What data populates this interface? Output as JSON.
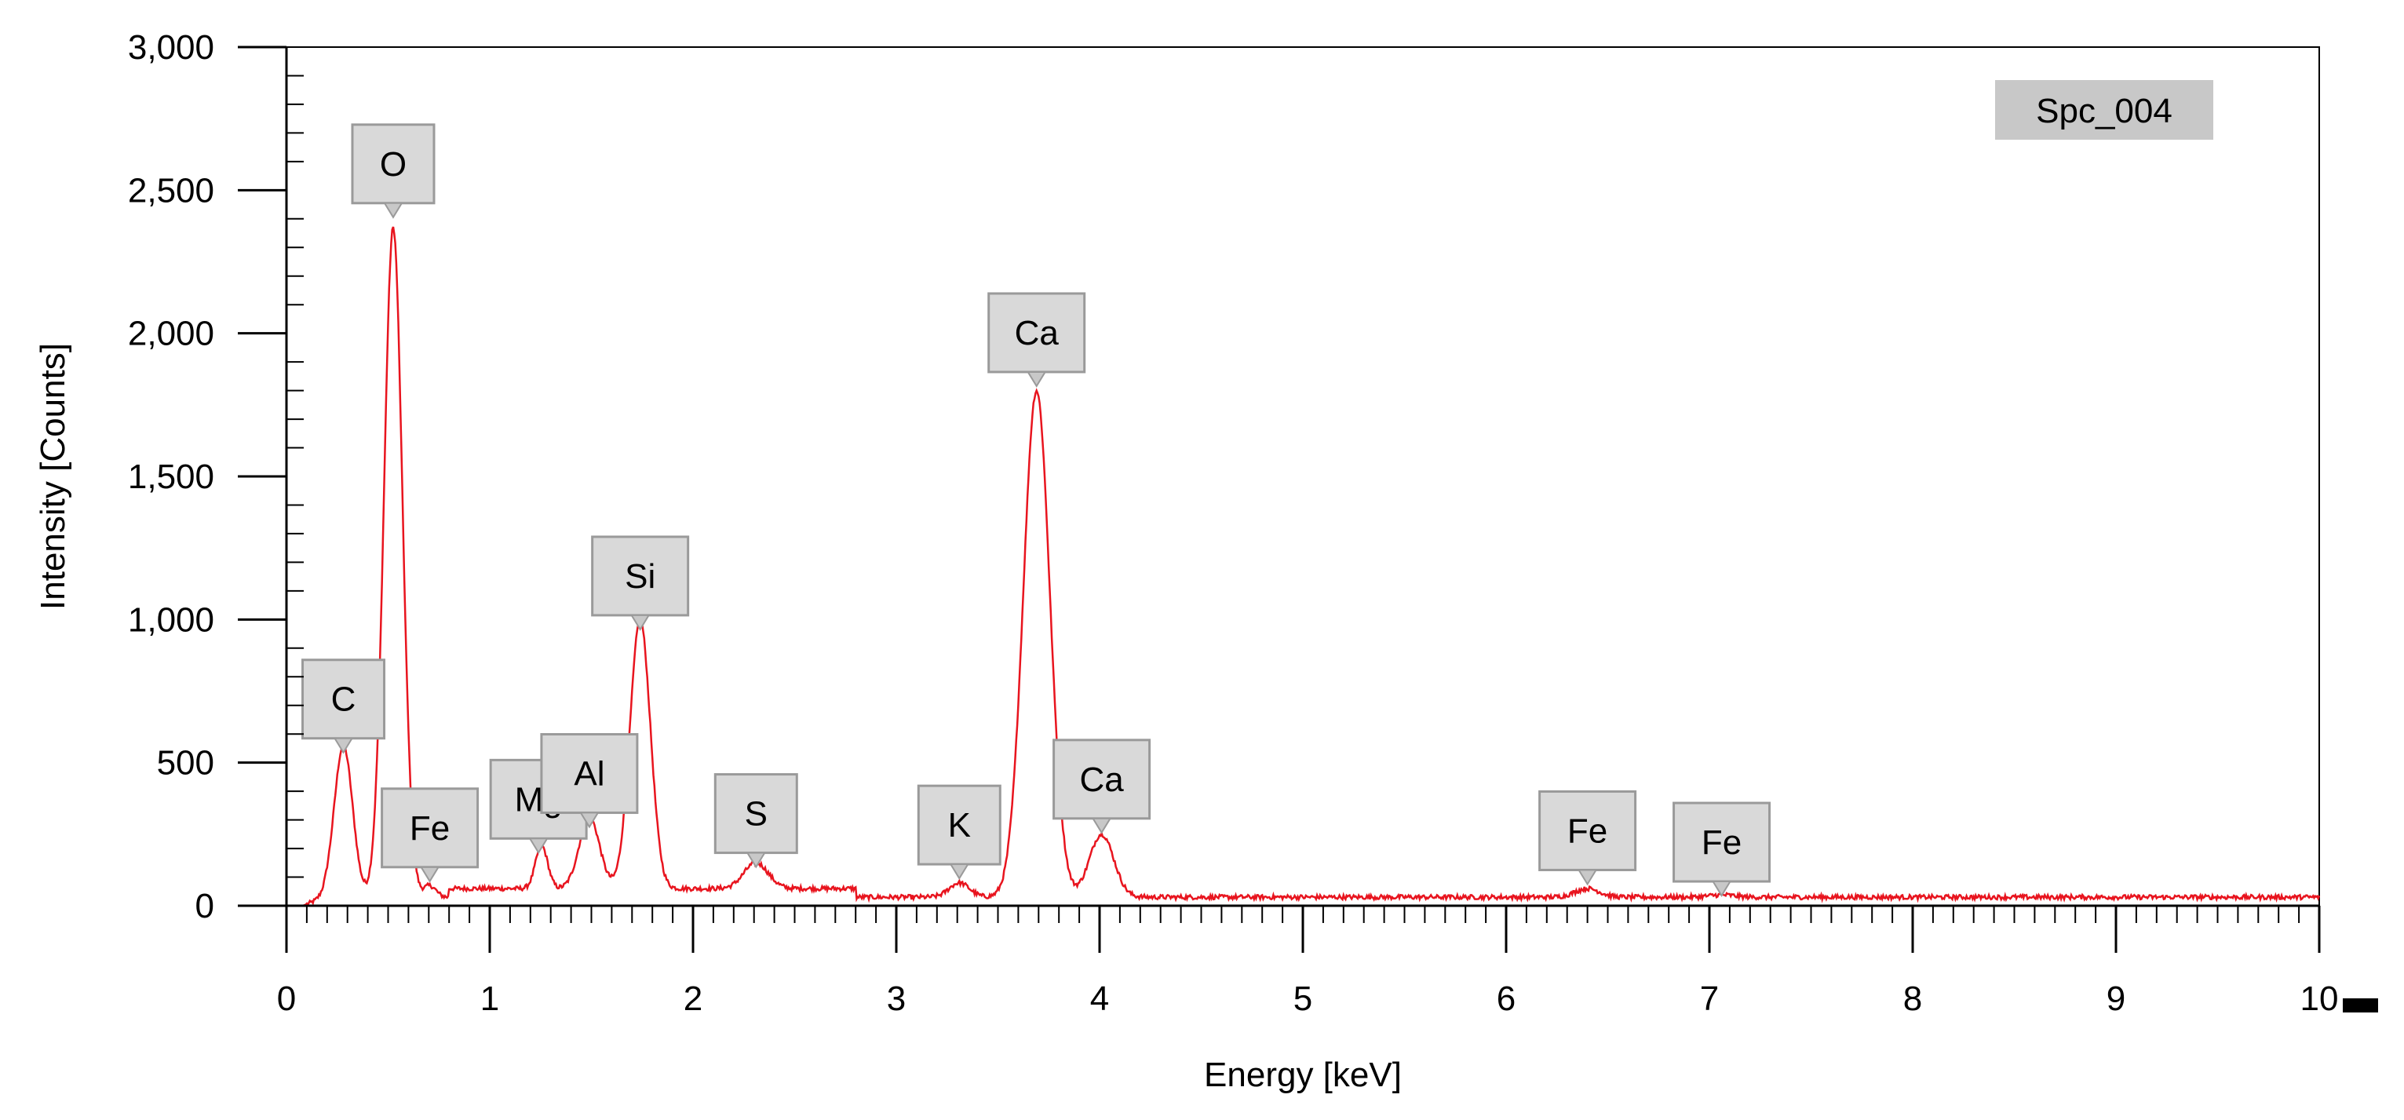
{
  "chart_data": {
    "type": "line",
    "title": "",
    "xlabel": "Energy [keV]",
    "ylabel": "Intensity [Counts]",
    "xlim": [
      0,
      10
    ],
    "ylim": [
      0,
      3000
    ],
    "x_ticks": [
      0,
      1,
      2,
      3,
      4,
      5,
      6,
      7,
      8,
      9,
      10
    ],
    "x_tick_labels": [
      "0",
      "1",
      "2",
      "3",
      "4",
      "5",
      "6",
      "7",
      "8",
      "9",
      "10"
    ],
    "y_ticks": [
      0,
      500,
      1000,
      1500,
      2000,
      2500,
      3000
    ],
    "y_tick_labels": [
      "0",
      "500",
      "1,000",
      "1,500",
      "2,000",
      "2,500",
      "3,000"
    ],
    "grid": false,
    "spectrum_label": "Spc_004",
    "series_color": "#e8141e",
    "background_counts": 30,
    "peaks": [
      {
        "x": 0.28,
        "y": 530,
        "width": 0.045
      },
      {
        "x": 0.525,
        "y": 2340,
        "width": 0.045
      },
      {
        "x": 0.705,
        "y": 40,
        "width": 0.03
      },
      {
        "x": 1.255,
        "y": 150,
        "width": 0.03
      },
      {
        "x": 1.49,
        "y": 250,
        "width": 0.05
      },
      {
        "x": 1.74,
        "y": 940,
        "width": 0.05
      },
      {
        "x": 2.31,
        "y": 90,
        "width": 0.06
      },
      {
        "x": 3.31,
        "y": 50,
        "width": 0.05
      },
      {
        "x": 3.69,
        "y": 1770,
        "width": 0.065
      },
      {
        "x": 4.01,
        "y": 220,
        "width": 0.06
      },
      {
        "x": 6.4,
        "y": 30,
        "width": 0.06
      },
      {
        "x": 7.06,
        "y": 8,
        "width": 0.06
      }
    ],
    "annotations": [
      {
        "label": "C",
        "x": 0.28,
        "y": 530
      },
      {
        "label": "O",
        "x": 0.525,
        "y": 2400
      },
      {
        "label": "Fe",
        "x": 0.705,
        "y": 80
      },
      {
        "label": "Mg",
        "x": 1.24,
        "y": 180
      },
      {
        "label": "Al",
        "x": 1.49,
        "y": 270
      },
      {
        "label": "Si",
        "x": 1.74,
        "y": 960
      },
      {
        "label": "S",
        "x": 2.31,
        "y": 130
      },
      {
        "label": "K",
        "x": 3.31,
        "y": 90
      },
      {
        "label": "Ca",
        "x": 3.69,
        "y": 1810
      },
      {
        "label": "Ca",
        "x": 4.01,
        "y": 250
      },
      {
        "label": "Fe",
        "x": 6.4,
        "y": 70
      },
      {
        "label": "Fe",
        "x": 7.06,
        "y": 30
      }
    ]
  }
}
